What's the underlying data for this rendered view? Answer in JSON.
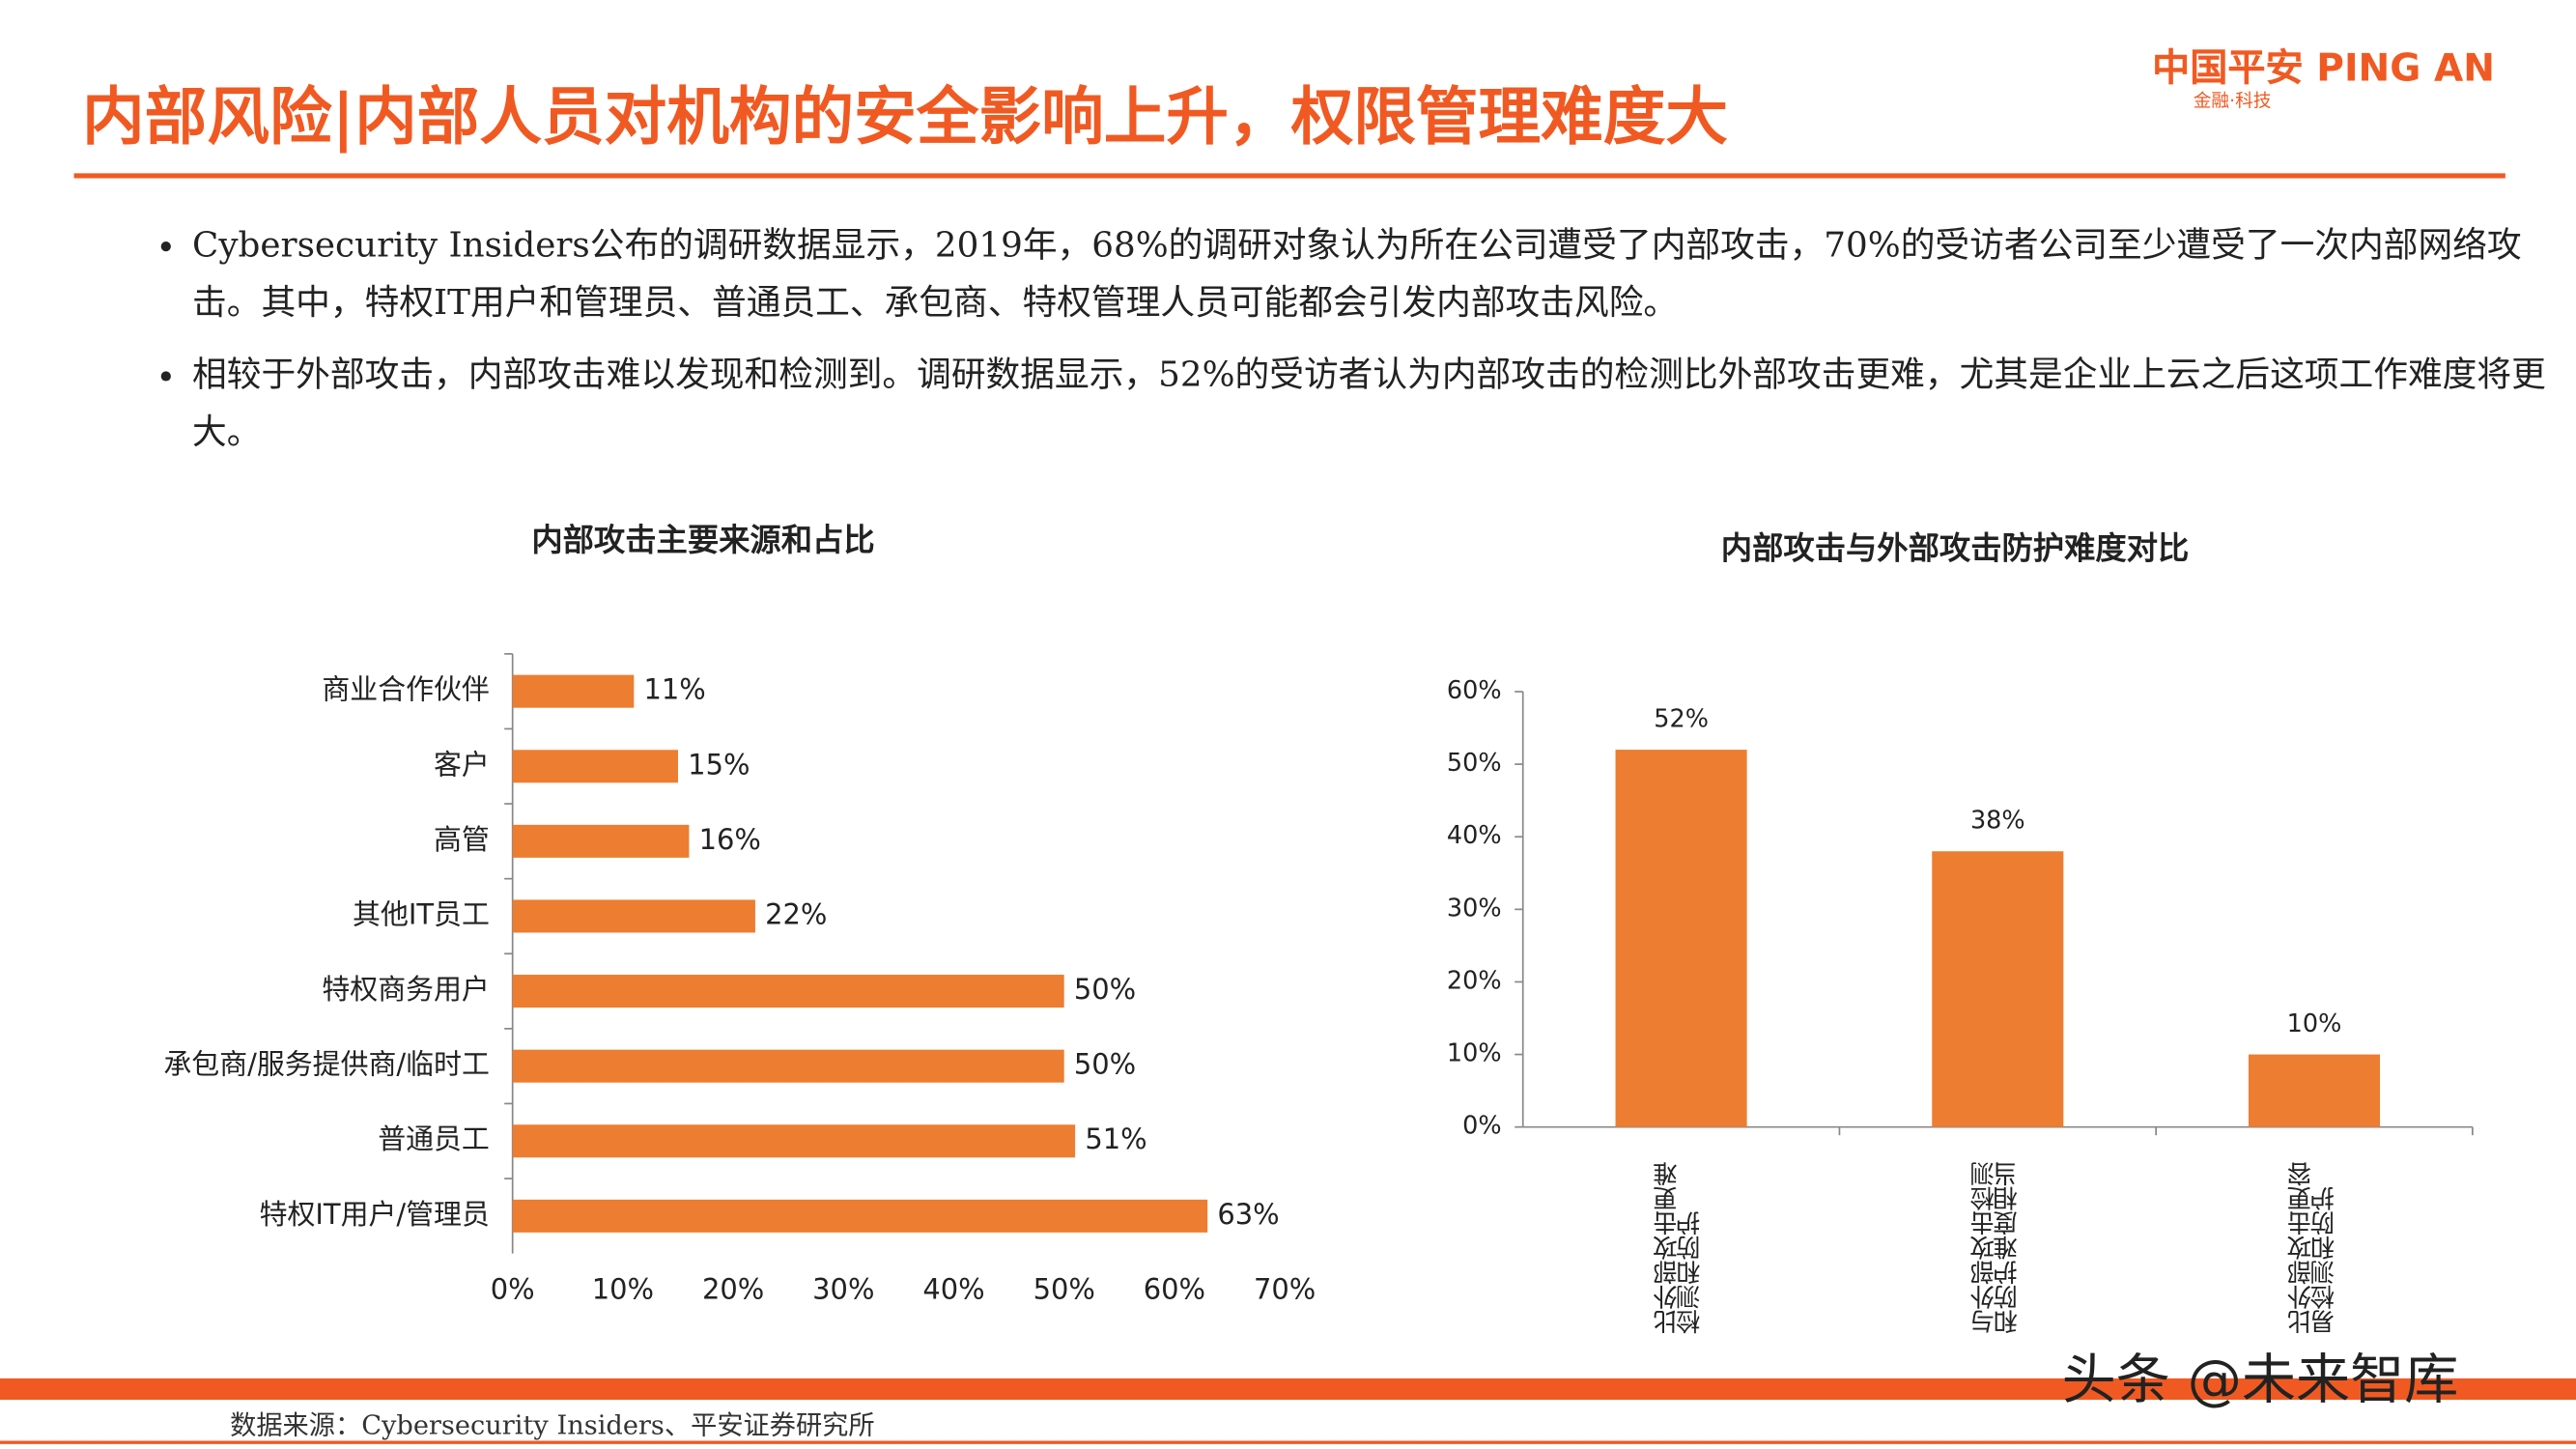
{
  "header": {
    "title": "内部风险|内部人员对机构的安全影响上升，权限管理难度大",
    "logo": "中国平安 PING AN",
    "logo_sub": "金融·科技"
  },
  "bullets": [
    "Cybersecurity Insiders公布的调研数据显示，2019年，68%的调研对象认为所在公司遭受了内部攻击，70%的受访者公司至少遭受了一次内部网络攻击。其中，特权IT用户和管理员、普通员工、承包商、特权管理人员可能都会引发内部攻击风险。",
    "相较于外部攻击，内部攻击难以发现和检测到。调研数据显示，52%的受访者认为内部攻击的检测比外部攻击更难，尤其是企业上云之后这项工作难度将更大。"
  ],
  "chart_data": [
    {
      "type": "hbar",
      "title": "内部攻击主要来源和占比",
      "color": "#ed7d31",
      "categories": [
        "商业合作伙伴",
        "客户",
        "高管",
        "其他IT员工",
        "特权商务用户",
        "承包商/服务提供商/临时工",
        "普通员工",
        "特权IT用户/管理员"
      ],
      "values": [
        11,
        15,
        16,
        22,
        50,
        50,
        51,
        63
      ],
      "value_labels": [
        "11%",
        "15%",
        "16%",
        "22%",
        "50%",
        "50%",
        "51%",
        "63%"
      ],
      "xlim": [
        0,
        70
      ],
      "xticks": [
        {
          "value": 0,
          "label": "0%"
        },
        {
          "value": 10,
          "label": "10%"
        },
        {
          "value": 20,
          "label": "20%"
        },
        {
          "value": 30,
          "label": "30%"
        },
        {
          "value": 40,
          "label": "40%"
        },
        {
          "value": 50,
          "label": "50%"
        },
        {
          "value": 60,
          "label": "60%"
        },
        {
          "value": 70,
          "label": "70%"
        }
      ]
    },
    {
      "type": "bar",
      "title": "内部攻击与外部攻击防护难度对比",
      "color": "#ed7d31",
      "categories": [
        "比外部攻击更难检测和防护",
        "与外部攻击检测和防护难度相当",
        "比外部攻击更容易检测和防护"
      ],
      "values": [
        52,
        38,
        10
      ],
      "value_labels": [
        "52%",
        "38%",
        "10%"
      ],
      "ylim": [
        0,
        60
      ],
      "yticks": [
        {
          "value": 0,
          "label": "0%"
        },
        {
          "value": 10,
          "label": "10%"
        },
        {
          "value": 20,
          "label": "20%"
        },
        {
          "value": 30,
          "label": "30%"
        },
        {
          "value": 40,
          "label": "40%"
        },
        {
          "value": 50,
          "label": "50%"
        },
        {
          "value": 60,
          "label": "60%"
        }
      ]
    }
  ],
  "source": "数据来源：Cybersecurity Insiders、平安证券研究所",
  "watermark": "头条 @未来智库"
}
